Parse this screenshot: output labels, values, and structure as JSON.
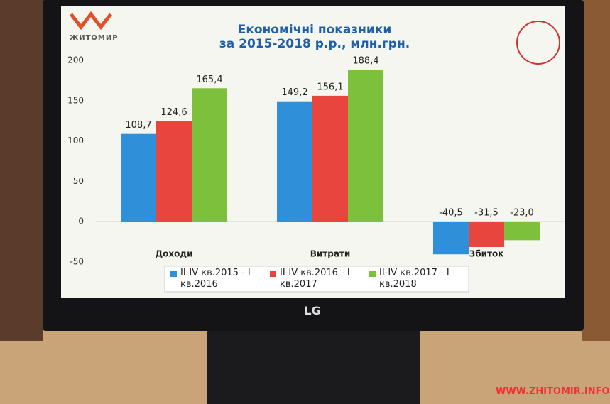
{
  "screen": {
    "logo": "ЖИТОМИР",
    "monitor_brand": "LG",
    "watermark": "WWW.ZHITOMIR.INFO"
  },
  "chart_data": {
    "type": "bar",
    "title": "Економічні показники",
    "subtitle": "за 2015-2018 р.р., млн.грн.",
    "categories": [
      "Доходи",
      "Витрати",
      "Збиток"
    ],
    "series": [
      {
        "name": "II-IV кв.2015 - I кв.2016",
        "color": "#2f8fd9",
        "values": [
          108.7,
          149.2,
          -40.5
        ],
        "value_labels": [
          "108,7",
          "149,2",
          "-40,5"
        ]
      },
      {
        "name": "II-IV кв.2016 - I кв.2017",
        "color": "#e8453e",
        "values": [
          124.6,
          156.1,
          -31.5
        ],
        "value_labels": [
          "124,6",
          "156,1",
          "-31,5"
        ]
      },
      {
        "name": "II-IV кв.2017 - I кв.2018",
        "color": "#7dc03b",
        "values": [
          165.4,
          188.4,
          -23.0
        ],
        "value_labels": [
          "165,4",
          "188,4",
          "-23,0"
        ]
      }
    ],
    "ylim": [
      -50,
      200
    ],
    "yticks": [
      -50,
      0,
      50,
      100,
      150,
      200
    ],
    "grid": false,
    "legend": "bottom"
  }
}
